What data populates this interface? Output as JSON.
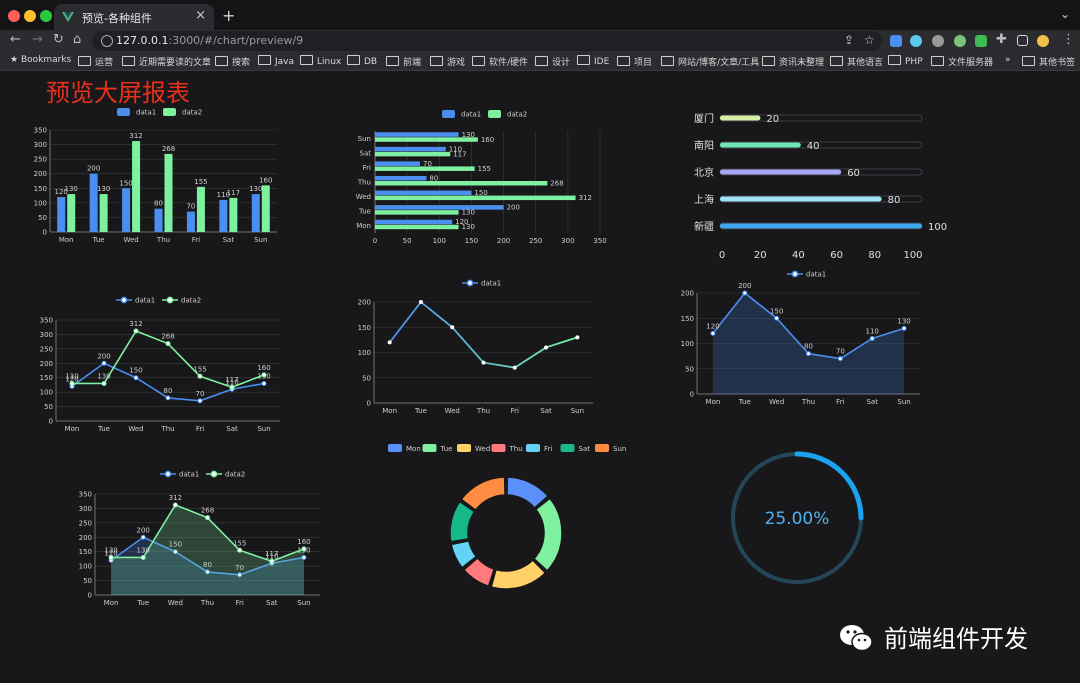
{
  "browser": {
    "tab_title": "预览-各种组件",
    "tab_close": "×",
    "new_tab": "+",
    "url_host": "127.0.0.1",
    "url_rest": ":3000/#/chart/preview/9",
    "bookmarks_label": "Bookmarks",
    "bookmarks": [
      "运营",
      "近期需要读的文章",
      "搜索",
      "Java",
      "Linux",
      "DB",
      "前端",
      "游戏",
      "软件/硬件",
      "设计",
      "IDE",
      "项目",
      "网站/博客/文章/工具",
      "资讯未整理",
      "其他语言",
      "PHP",
      "文件服务器"
    ],
    "more": "»",
    "other_bookmarks": "其他书签"
  },
  "page": {
    "title": "预览大屏报表"
  },
  "watermark": {
    "text": "前端组件开发"
  },
  "chart_data": [
    {
      "type": "bar",
      "categories": [
        "Mon",
        "Tue",
        "Wed",
        "Thu",
        "Fri",
        "Sat",
        "Sun"
      ],
      "series": [
        {
          "name": "data1",
          "values": [
            120,
            200,
            150,
            80,
            70,
            110,
            130
          ]
        },
        {
          "name": "data2",
          "values": [
            130,
            130,
            312,
            268,
            155,
            117,
            160
          ]
        }
      ],
      "ylim": [
        0,
        350
      ],
      "yticks": [
        0,
        50,
        100,
        150,
        200,
        250,
        300,
        350
      ],
      "legend": "top-center",
      "colors": [
        "#4a8ff0",
        "#7ef0a0"
      ]
    },
    {
      "type": "bar",
      "orientation": "horizontal",
      "categories": [
        "Mon",
        "Tue",
        "Wed",
        "Thu",
        "Fri",
        "Sat",
        "Sun"
      ],
      "series": [
        {
          "name": "data1",
          "values": [
            120,
            200,
            150,
            80,
            70,
            110,
            130
          ]
        },
        {
          "name": "data2",
          "values": [
            130,
            130,
            312,
            268,
            155,
            117,
            160
          ]
        }
      ],
      "xlim": [
        0,
        350
      ],
      "xticks": [
        0,
        50,
        100,
        150,
        200,
        250,
        300,
        350
      ],
      "legend": "top-center",
      "colors": [
        "#4a8ff0",
        "#7ef0a0"
      ]
    },
    {
      "type": "bar",
      "style": "progress",
      "categories": [
        "厦门",
        "南阳",
        "北京",
        "上海",
        "新疆"
      ],
      "values": [
        20,
        40,
        60,
        80,
        100
      ],
      "xlim": [
        0,
        100
      ],
      "xticks": [
        0,
        20,
        40,
        60,
        80,
        100
      ],
      "colors": [
        "#d6f0a8",
        "#6ee7b7",
        "#a7a5f5",
        "#9fe3f5",
        "#3fa7f0"
      ]
    },
    {
      "type": "line",
      "categories": [
        "Mon",
        "Tue",
        "Wed",
        "Thu",
        "Fri",
        "Sat",
        "Sun"
      ],
      "series": [
        {
          "name": "data1",
          "values": [
            120,
            200,
            150,
            80,
            70,
            110,
            130
          ]
        },
        {
          "name": "data2",
          "values": [
            130,
            130,
            312,
            268,
            155,
            117,
            160
          ]
        }
      ],
      "ylim": [
        0,
        350
      ],
      "yticks": [
        0,
        50,
        100,
        150,
        200,
        250,
        300,
        350
      ],
      "legend": "top-center",
      "colors": [
        "#4a8ff0",
        "#7ef0a0"
      ]
    },
    {
      "type": "line",
      "categories": [
        "Mon",
        "Tue",
        "Wed",
        "Thu",
        "Fri",
        "Sat",
        "Sun"
      ],
      "series": [
        {
          "name": "data1",
          "values": [
            120,
            200,
            150,
            80,
            70,
            110,
            130
          ]
        }
      ],
      "ylim": [
        0,
        200
      ],
      "yticks": [
        0,
        50,
        100,
        150,
        200
      ],
      "legend": "top-center",
      "colors": [
        "#4a8ff0",
        "#7ef0a0"
      ]
    },
    {
      "type": "area",
      "categories": [
        "Mon",
        "Tue",
        "Wed",
        "Thu",
        "Fri",
        "Sat",
        "Sun"
      ],
      "series": [
        {
          "name": "data1",
          "values": [
            120,
            200,
            150,
            80,
            70,
            110,
            130
          ]
        }
      ],
      "ylim": [
        0,
        200
      ],
      "yticks": [
        0,
        50,
        100,
        150,
        200
      ],
      "legend": "top-center",
      "colors": [
        "#4a8ff0"
      ]
    },
    {
      "type": "area",
      "categories": [
        "Mon",
        "Tue",
        "Wed",
        "Thu",
        "Fri",
        "Sat",
        "Sun"
      ],
      "series": [
        {
          "name": "data1",
          "values": [
            120,
            200,
            150,
            80,
            70,
            110,
            130
          ]
        },
        {
          "name": "data2",
          "values": [
            130,
            130,
            312,
            268,
            155,
            117,
            160
          ]
        }
      ],
      "ylim": [
        0,
        350
      ],
      "yticks": [
        0,
        50,
        100,
        150,
        200,
        250,
        300,
        350
      ],
      "legend": "top-center",
      "colors": [
        "#4a8ff0",
        "#7ef0a0"
      ]
    },
    {
      "type": "pie",
      "style": "donut",
      "categories": [
        "Mon",
        "Tue",
        "Wed",
        "Thu",
        "Fri",
        "Sat",
        "Sun"
      ],
      "values": [
        120,
        200,
        150,
        80,
        70,
        110,
        130
      ],
      "legend": "top-center",
      "colors": [
        "#5b8ff9",
        "#7ef0a0",
        "#ffd166",
        "#ff7b7b",
        "#63d4f5",
        "#16b88a",
        "#ff8c42"
      ]
    },
    {
      "type": "pie",
      "style": "progress-ring",
      "values": [
        25
      ],
      "label": "25.00%",
      "colors": [
        "#1aa4f0",
        "#244656"
      ]
    }
  ]
}
